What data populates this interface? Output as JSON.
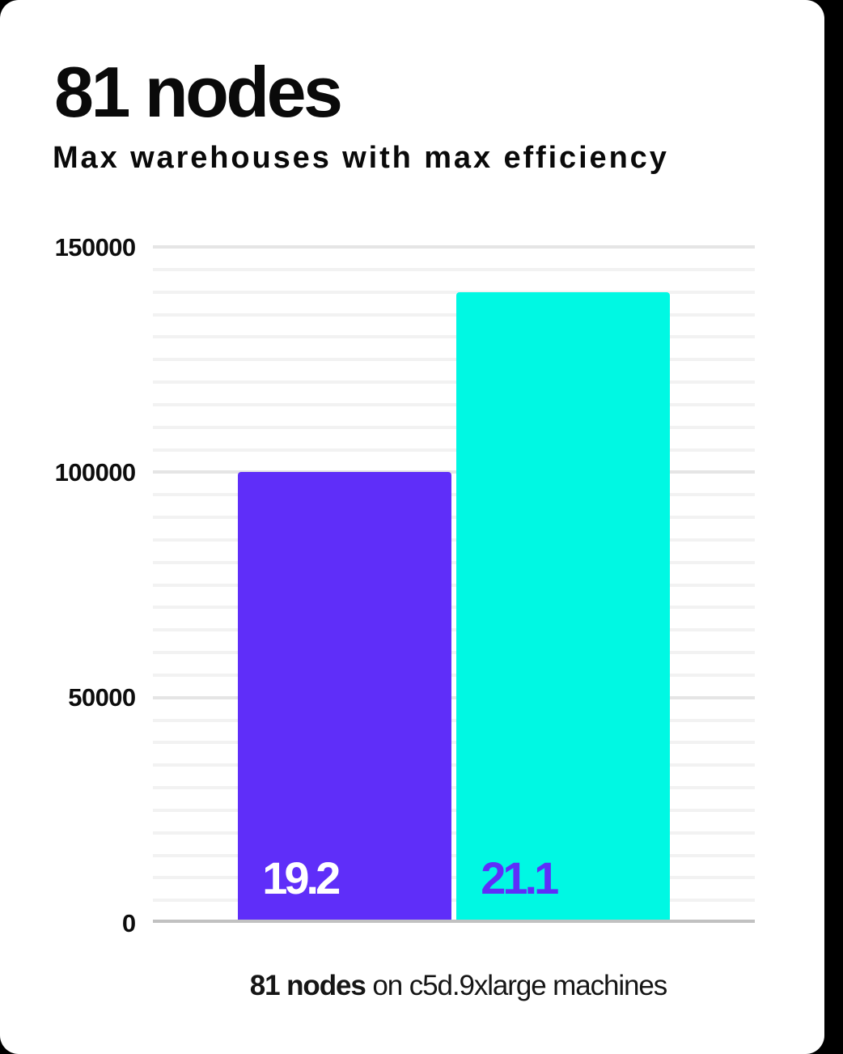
{
  "page": {
    "background_color": "#000000",
    "card_color": "#ffffff"
  },
  "header": {
    "title": "81 nodes",
    "subtitle": "Max warehouses with max efficiency"
  },
  "chart_data": {
    "type": "bar",
    "title": "81 nodes",
    "subtitle": "Max warehouses with max efficiency",
    "categories": [
      "19.2",
      "21.1"
    ],
    "values": [
      100000,
      140000
    ],
    "bars": [
      {
        "label": "19.2",
        "value": 100000,
        "bar_color": "#5f2ef9",
        "label_color": "#ffffff"
      },
      {
        "label": "21.1",
        "value": 140000,
        "bar_color": "#00f8e3",
        "label_color": "#5f2ef9"
      }
    ],
    "ylabel": "",
    "xlabel": "",
    "ylim": [
      0,
      150000
    ],
    "y_ticks": [
      {
        "value": 0,
        "label": "0"
      },
      {
        "value": 50000,
        "label": "50000"
      },
      {
        "value": 100000,
        "label": "100000"
      },
      {
        "value": 150000,
        "label": "150000"
      }
    ],
    "minor_gridline_step": 5000,
    "grid": true,
    "legend": false,
    "caption_bold": "81 nodes",
    "caption_rest": " on c5d.9xlarge machines"
  },
  "colors": {
    "axis_line": "#c1c1c1",
    "major_gridline": "#e5e5e5",
    "minor_gridline": "#f2f2f2",
    "tick_label": "#0d0d0d",
    "title": "#0a0a0a"
  }
}
